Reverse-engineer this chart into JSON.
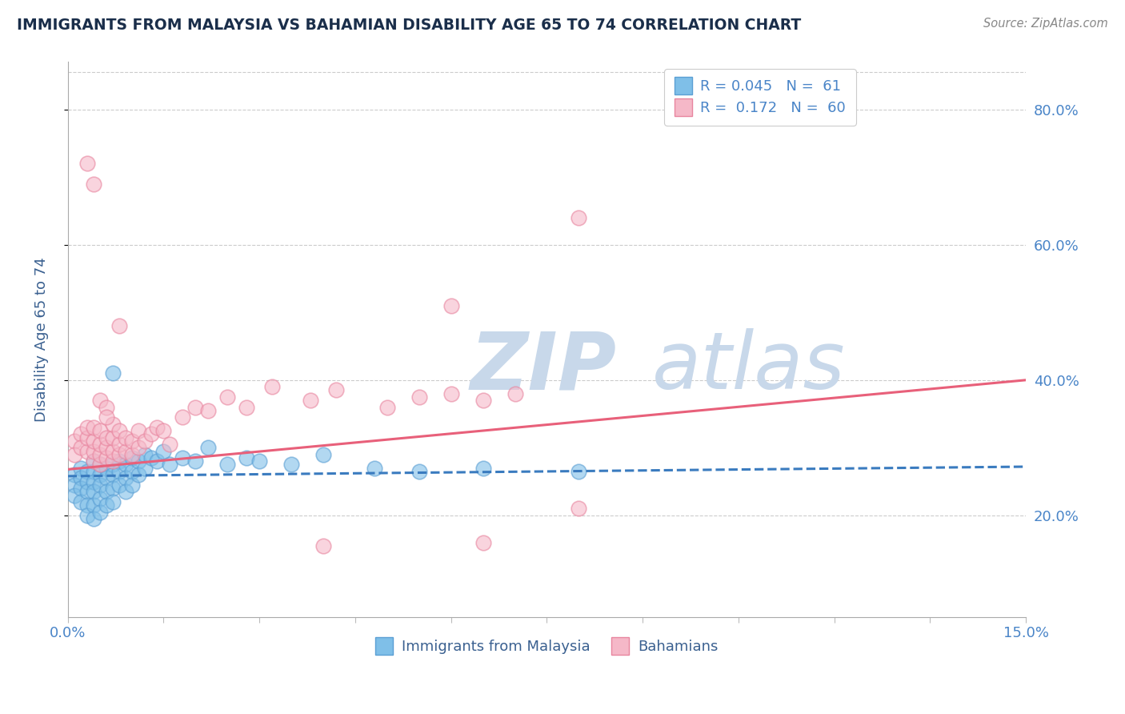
{
  "title": "IMMIGRANTS FROM MALAYSIA VS BAHAMIAN DISABILITY AGE 65 TO 74 CORRELATION CHART",
  "source": "Source: ZipAtlas.com",
  "ylabel": "Disability Age 65 to 74",
  "xmin": 0.0,
  "xmax": 0.15,
  "ymin": 0.05,
  "ymax": 0.87,
  "yticks": [
    0.2,
    0.4,
    0.6,
    0.8
  ],
  "legend_r1": "R = 0.045",
  "legend_n1": "N =  61",
  "legend_r2": "R =  0.172",
  "legend_n2": "N =  60",
  "color_blue": "#7fbfe8",
  "color_blue_edge": "#5b9fd4",
  "color_blue_trend": "#3a7bbf",
  "color_pink": "#f5b8c8",
  "color_pink_edge": "#e8859f",
  "color_pink_trend": "#e8607a",
  "color_title": "#1a2e4a",
  "color_axis_label": "#3a6090",
  "color_tick_label": "#4a85c8",
  "color_grid": "#cccccc",
  "color_source": "#888888",
  "color_watermark": "#c8d8ea",
  "blue_scatter_x": [
    0.001,
    0.001,
    0.001,
    0.002,
    0.002,
    0.002,
    0.002,
    0.003,
    0.003,
    0.003,
    0.003,
    0.003,
    0.004,
    0.004,
    0.004,
    0.004,
    0.004,
    0.004,
    0.005,
    0.005,
    0.005,
    0.005,
    0.005,
    0.006,
    0.006,
    0.006,
    0.006,
    0.007,
    0.007,
    0.007,
    0.007,
    0.008,
    0.008,
    0.008,
    0.009,
    0.009,
    0.009,
    0.01,
    0.01,
    0.01,
    0.011,
    0.011,
    0.012,
    0.012,
    0.013,
    0.014,
    0.015,
    0.016,
    0.018,
    0.02,
    0.022,
    0.025,
    0.028,
    0.03,
    0.035,
    0.04,
    0.048,
    0.055,
    0.065,
    0.08,
    0.007
  ],
  "blue_scatter_y": [
    0.26,
    0.245,
    0.23,
    0.27,
    0.255,
    0.24,
    0.22,
    0.265,
    0.25,
    0.235,
    0.215,
    0.2,
    0.28,
    0.265,
    0.25,
    0.235,
    0.215,
    0.195,
    0.275,
    0.26,
    0.245,
    0.225,
    0.205,
    0.27,
    0.255,
    0.235,
    0.215,
    0.275,
    0.26,
    0.24,
    0.22,
    0.28,
    0.265,
    0.245,
    0.275,
    0.255,
    0.235,
    0.285,
    0.265,
    0.245,
    0.28,
    0.26,
    0.29,
    0.27,
    0.285,
    0.28,
    0.295,
    0.275,
    0.285,
    0.28,
    0.3,
    0.275,
    0.285,
    0.28,
    0.275,
    0.29,
    0.27,
    0.265,
    0.27,
    0.265,
    0.41
  ],
  "pink_scatter_x": [
    0.001,
    0.001,
    0.002,
    0.002,
    0.003,
    0.003,
    0.003,
    0.004,
    0.004,
    0.004,
    0.004,
    0.005,
    0.005,
    0.005,
    0.005,
    0.006,
    0.006,
    0.006,
    0.007,
    0.007,
    0.007,
    0.007,
    0.008,
    0.008,
    0.008,
    0.009,
    0.009,
    0.01,
    0.01,
    0.011,
    0.011,
    0.012,
    0.013,
    0.014,
    0.015,
    0.016,
    0.018,
    0.02,
    0.022,
    0.025,
    0.028,
    0.032,
    0.038,
    0.042,
    0.05,
    0.055,
    0.06,
    0.065,
    0.07,
    0.08,
    0.003,
    0.004,
    0.005,
    0.006,
    0.006,
    0.008,
    0.06,
    0.08,
    0.04,
    0.065
  ],
  "pink_scatter_y": [
    0.31,
    0.29,
    0.32,
    0.3,
    0.295,
    0.315,
    0.33,
    0.28,
    0.295,
    0.31,
    0.33,
    0.275,
    0.29,
    0.305,
    0.325,
    0.285,
    0.3,
    0.315,
    0.28,
    0.295,
    0.315,
    0.335,
    0.29,
    0.305,
    0.325,
    0.295,
    0.315,
    0.29,
    0.31,
    0.3,
    0.325,
    0.31,
    0.32,
    0.33,
    0.325,
    0.305,
    0.345,
    0.36,
    0.355,
    0.375,
    0.36,
    0.39,
    0.37,
    0.385,
    0.36,
    0.375,
    0.38,
    0.37,
    0.38,
    0.21,
    0.72,
    0.69,
    0.37,
    0.36,
    0.345,
    0.48,
    0.51,
    0.64,
    0.155,
    0.16
  ],
  "blue_trend_x": [
    0.0,
    0.15
  ],
  "blue_trend_y": [
    0.258,
    0.272
  ],
  "pink_trend_x": [
    0.0,
    0.15
  ],
  "pink_trend_y": [
    0.268,
    0.4
  ]
}
